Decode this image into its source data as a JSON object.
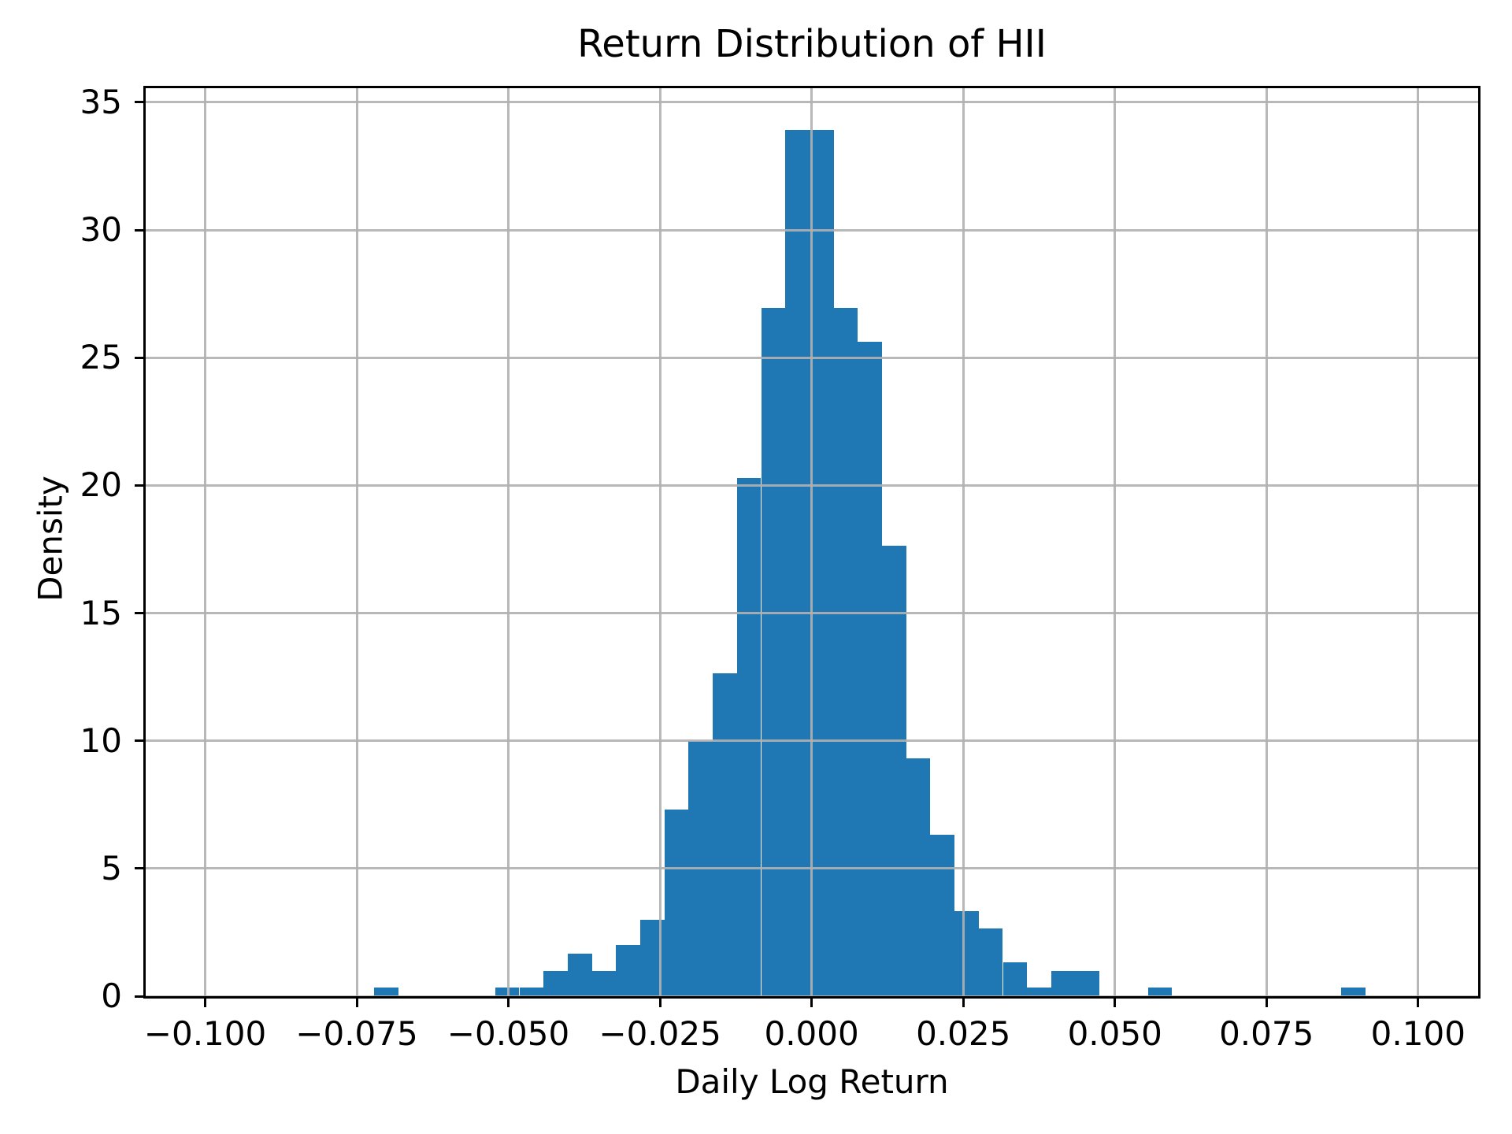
{
  "title": "Return Distribution of HII",
  "xlabel": "Daily Log Return",
  "ylabel": "Density",
  "chart_data": {
    "type": "bar",
    "subtype": "histogram",
    "title": "Return Distribution of HII",
    "xlabel": "Daily Log Return",
    "ylabel": "Density",
    "bar_color": "#1f77b4",
    "grid_color": "#b0b0b0",
    "axis_color": "#000000",
    "grid": true,
    "legend_position": "none",
    "xlim": [
      -0.1098,
      0.1099
    ],
    "ylim": [
      0,
      35.55
    ],
    "bin_start": -0.0721,
    "bin_width": 0.003986,
    "densities": [
      0.333,
      0,
      0,
      0,
      0,
      0.333,
      0.333,
      0.998,
      1.663,
      0.998,
      1.996,
      2.994,
      7.319,
      9.98,
      12.64,
      20.29,
      26.95,
      33.93,
      33.93,
      26.95,
      25.62,
      17.63,
      9.314,
      6.321,
      3.327,
      2.661,
      1.331,
      0.333,
      0.998,
      0.998,
      0,
      0,
      0.333,
      0,
      0,
      0,
      0,
      0,
      0,
      0,
      0.333
    ],
    "x_ticks": [
      {
        "value": -0.1,
        "label": "−0.100"
      },
      {
        "value": -0.075,
        "label": "−0.075"
      },
      {
        "value": -0.05,
        "label": "−0.050"
      },
      {
        "value": -0.025,
        "label": "−0.025"
      },
      {
        "value": 0.0,
        "label": "0.000"
      },
      {
        "value": 0.025,
        "label": "0.025"
      },
      {
        "value": 0.05,
        "label": "0.050"
      },
      {
        "value": 0.075,
        "label": "0.075"
      },
      {
        "value": 0.1,
        "label": "0.100"
      }
    ],
    "y_ticks": [
      {
        "value": 0,
        "label": "0"
      },
      {
        "value": 5,
        "label": "5"
      },
      {
        "value": 10,
        "label": "10"
      },
      {
        "value": 15,
        "label": "15"
      },
      {
        "value": 20,
        "label": "20"
      },
      {
        "value": 25,
        "label": "25"
      },
      {
        "value": 30,
        "label": "30"
      },
      {
        "value": 35,
        "label": "35"
      }
    ]
  }
}
